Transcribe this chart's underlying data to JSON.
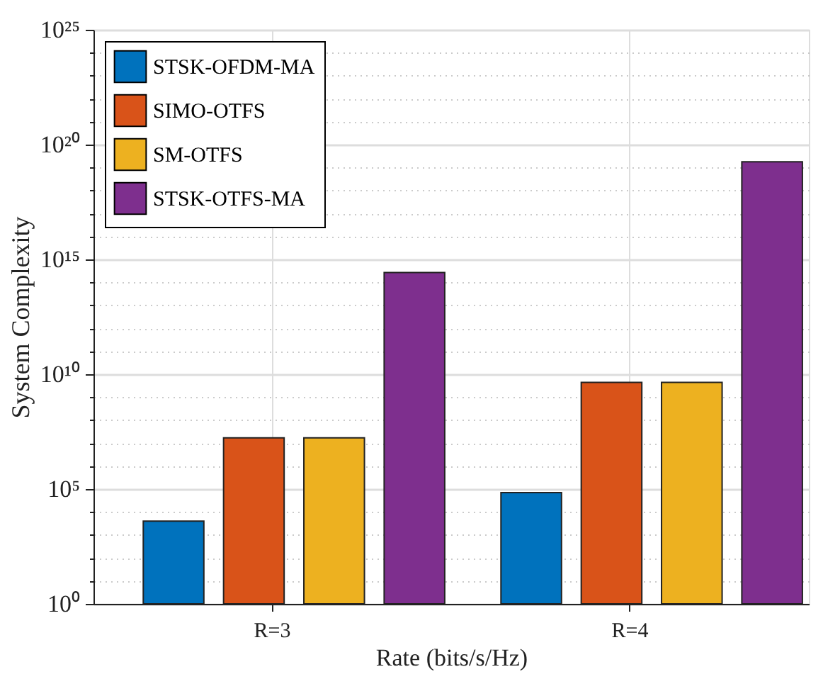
{
  "chart_data": {
    "type": "bar",
    "xlabel": "Rate (bits/s/Hz)",
    "ylabel": "System Complexity",
    "categories": [
      "R=3",
      "R=4"
    ],
    "series": [
      {
        "name": "STSK-OFDM-MA",
        "color": "#0072bd",
        "values": [
          4000,
          70000
        ]
      },
      {
        "name": "SIMO-OTFS",
        "color": "#d95319",
        "values": [
          17000000,
          4400000000
        ]
      },
      {
        "name": "SM-OTFS",
        "color": "#edb120",
        "values": [
          17000000,
          4400000000
        ]
      },
      {
        "name": "STSK-OTFS-MA",
        "color": "#7e2f8e",
        "values": [
          270000000000000,
          18000000000000000000
        ]
      }
    ],
    "log": true,
    "ylim": [
      1,
      1e+25
    ],
    "yticks": [
      {
        "value": 1,
        "label": "10⁰"
      },
      {
        "value": 10,
        "label": null
      },
      {
        "value": 100,
        "label": null
      },
      {
        "value": 1000,
        "label": null
      },
      {
        "value": 10000,
        "label": null
      },
      {
        "value": 100000,
        "label": "10⁵"
      },
      {
        "value": 1000000.0,
        "label": null
      },
      {
        "value": 10000000.0,
        "label": null
      },
      {
        "value": 100000000.0,
        "label": null
      },
      {
        "value": 1000000000.0,
        "label": null
      },
      {
        "value": 10000000000.0,
        "label": "10¹⁰"
      },
      {
        "value": 100000000000.0,
        "label": null
      },
      {
        "value": 1000000000000.0,
        "label": null
      },
      {
        "value": 10000000000000.0,
        "label": null
      },
      {
        "value": 100000000000000.0,
        "label": null
      },
      {
        "value": 1000000000000000.0,
        "label": "10¹⁵"
      },
      {
        "value": 1e+16,
        "label": null
      },
      {
        "value": 1e+17,
        "label": null
      },
      {
        "value": 1e+18,
        "label": null
      },
      {
        "value": 1e+19,
        "label": null
      },
      {
        "value": 1e+20,
        "label": "10²⁰"
      },
      {
        "value": 1e+21,
        "label": null
      },
      {
        "value": 1e+22,
        "label": null
      },
      {
        "value": 1e+23,
        "label": null
      },
      {
        "value": 1e+24,
        "label": null
      },
      {
        "value": 1e+25,
        "label": "10²⁵"
      }
    ],
    "grid": true,
    "legend": "top left"
  }
}
